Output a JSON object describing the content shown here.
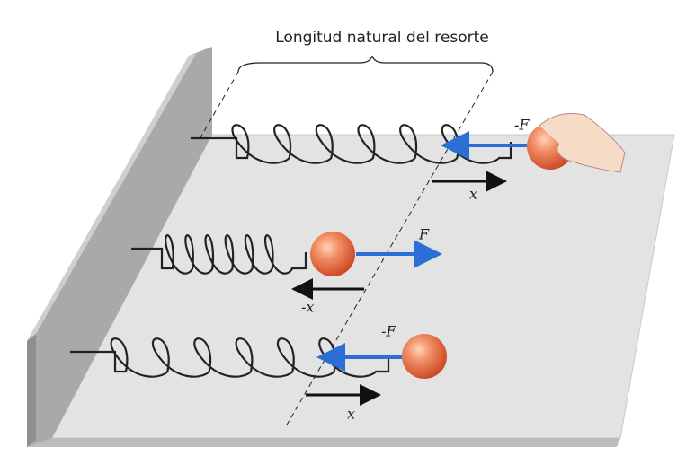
{
  "title": "Longitud natural del resorte",
  "rows": [
    {
      "force_label": "-F",
      "displacement_label": "x"
    },
    {
      "force_label": "F",
      "displacement_label": "-x"
    },
    {
      "force_label": "-F",
      "displacement_label": "x"
    }
  ]
}
